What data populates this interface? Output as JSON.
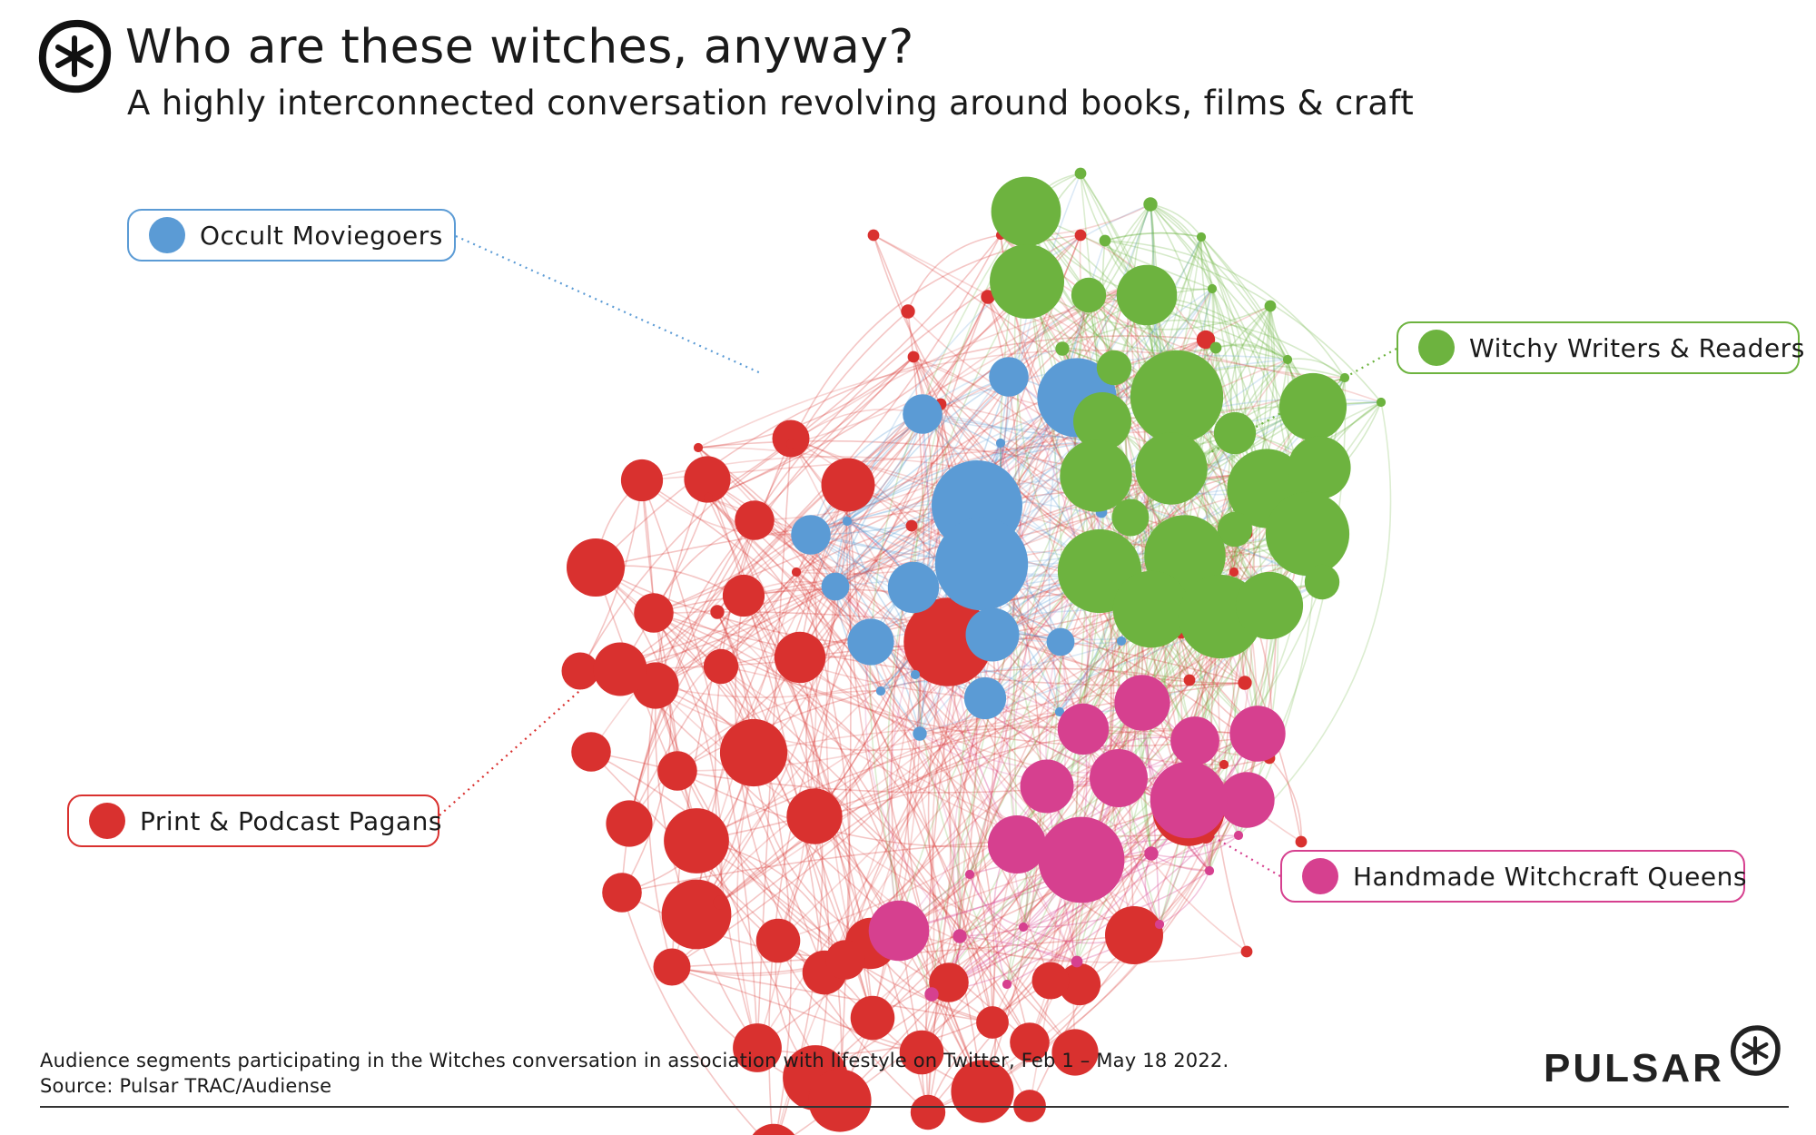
{
  "header": {
    "title": "Who are these witches, anyway?",
    "subtitle": "A highly interconnected conversation revolving around books, films & craft"
  },
  "icons": {
    "logo": "pulsar-asterisk-icon",
    "brand_mark": "pulsar-asterisk-icon"
  },
  "legend": [
    {
      "label": "Occult Moviegoers",
      "color": "#5b9bd5"
    },
    {
      "label": "Witchy Writers & Readers",
      "color": "#6db33f"
    },
    {
      "label": "Print & Podcast Pagans",
      "color": "#d9312f"
    },
    {
      "label": "Handmade Witchcraft Queens",
      "color": "#d6408f"
    }
  ],
  "footer": {
    "note": "Audience segments participating in the Witches conversation in association with lifestyle on Twitter, Feb 1  – May 18 2022.",
    "source": "Source: Pulsar TRAC/Audiense"
  },
  "brand": {
    "name": "PULSAR"
  }
}
